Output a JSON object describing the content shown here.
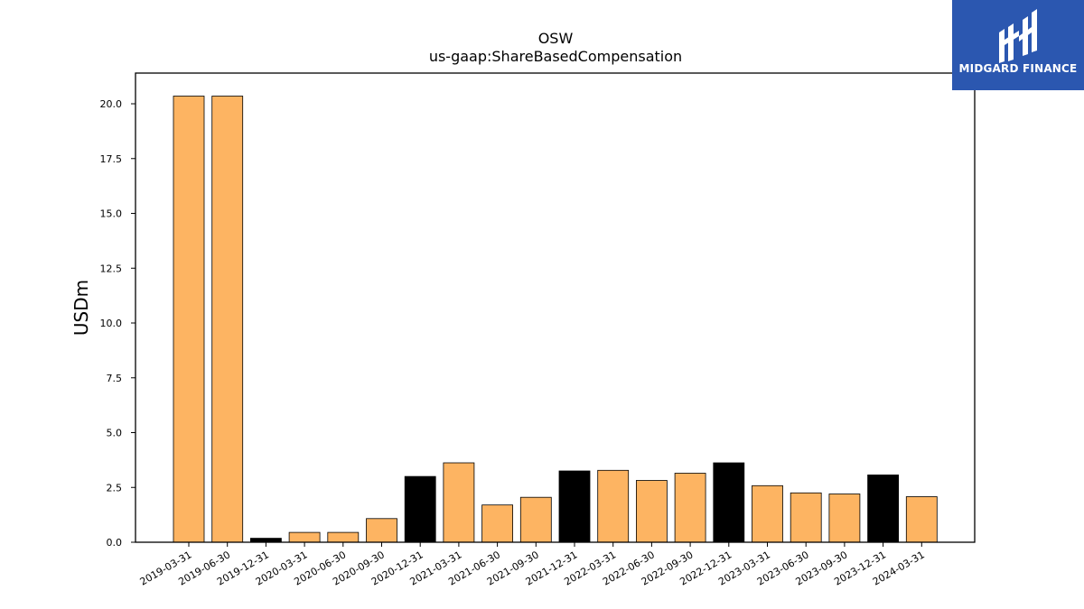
{
  "chart_data": {
    "type": "bar",
    "title": "OSW",
    "subtitle": "us-gaap:ShareBasedCompensation",
    "xlabel": "",
    "ylabel": "USDm",
    "ylim": [
      0,
      21.4
    ],
    "yticks": [
      0.0,
      2.5,
      5.0,
      7.5,
      10.0,
      12.5,
      15.0,
      17.5,
      20.0
    ],
    "grid": false,
    "categories": [
      "2019-03-31",
      "2019-06-30",
      "2019-12-31",
      "2020-03-31",
      "2020-06-30",
      "2020-09-30",
      "2020-12-31",
      "2021-03-31",
      "2021-06-30",
      "2021-09-30",
      "2021-12-31",
      "2022-03-31",
      "2022-06-30",
      "2022-09-30",
      "2022-12-31",
      "2023-03-31",
      "2023-06-30",
      "2023-09-30",
      "2023-12-31",
      "2024-03-31"
    ],
    "values": [
      20.35,
      20.35,
      0.18,
      0.45,
      0.45,
      1.08,
      3.0,
      3.62,
      1.7,
      2.05,
      3.25,
      3.28,
      2.82,
      3.15,
      3.62,
      2.58,
      2.25,
      2.2,
      3.07,
      2.08
    ],
    "bar_colors": [
      "#fdb462",
      "#fdb462",
      "#000000",
      "#fdb462",
      "#fdb462",
      "#fdb462",
      "#000000",
      "#fdb462",
      "#fdb462",
      "#fdb462",
      "#000000",
      "#fdb462",
      "#fdb462",
      "#fdb462",
      "#000000",
      "#fdb462",
      "#fdb462",
      "#fdb462",
      "#000000",
      "#fdb462"
    ]
  },
  "logo": {
    "text": "MIDGARD FINANCE",
    "background": "#2b57b0"
  }
}
